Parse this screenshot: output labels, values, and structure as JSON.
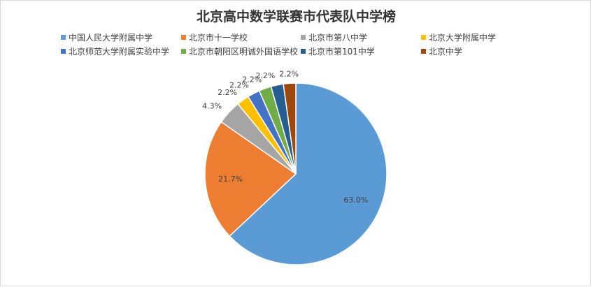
{
  "chart_data": {
    "type": "pie",
    "title": "北京高中数学联赛市代表队中学榜",
    "legend_position": "top",
    "slices": [
      {
        "label": "中国人民大学附属中学",
        "value": 63.0,
        "display": "63.0%",
        "color": "#5B9BD5"
      },
      {
        "label": "北京市十一学校",
        "value": 21.7,
        "display": "21.7%",
        "color": "#ED7D31"
      },
      {
        "label": "北京市第八中学",
        "value": 4.3,
        "display": "4.3%",
        "color": "#A5A5A5"
      },
      {
        "label": "北京大学附属中学",
        "value": 2.2,
        "display": "2.2%",
        "color": "#FFC000"
      },
      {
        "label": "北京师范大学附属实验中学",
        "value": 2.2,
        "display": "2.2%",
        "color": "#4472C4"
      },
      {
        "label": "北京市朝阳区明诚外国语学校",
        "value": 2.2,
        "display": "2.2%",
        "color": "#70AD47"
      },
      {
        "label": "北京市第101中学",
        "value": 2.2,
        "display": "2.2%",
        "color": "#255E91"
      },
      {
        "label": "北京中学",
        "value": 2.2,
        "display": "2.2%",
        "color": "#9E480E"
      }
    ]
  }
}
